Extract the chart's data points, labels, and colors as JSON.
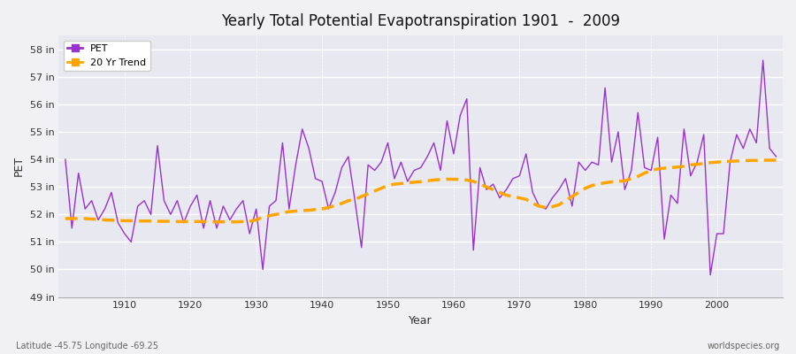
{
  "title": "Yearly Total Potential Evapotranspiration 1901  -  2009",
  "xlabel": "Year",
  "ylabel": "PET",
  "subtitle_left": "Latitude -45.75 Longitude -69.25",
  "subtitle_right": "worldspecies.org",
  "pet_color": "#9932CC",
  "trend_color": "#FFA500",
  "bg_color": "#f0f0f5",
  "plot_bg_color": "#e8e8f0",
  "ylim_min": 49,
  "ylim_max": 58.5,
  "years": [
    1901,
    1902,
    1903,
    1904,
    1905,
    1906,
    1907,
    1908,
    1909,
    1910,
    1911,
    1912,
    1913,
    1914,
    1915,
    1916,
    1917,
    1918,
    1919,
    1920,
    1921,
    1922,
    1923,
    1924,
    1925,
    1926,
    1927,
    1928,
    1929,
    1930,
    1931,
    1932,
    1933,
    1934,
    1935,
    1936,
    1937,
    1938,
    1939,
    1940,
    1941,
    1942,
    1943,
    1944,
    1945,
    1946,
    1947,
    1948,
    1949,
    1950,
    1951,
    1952,
    1953,
    1954,
    1955,
    1956,
    1957,
    1958,
    1959,
    1960,
    1961,
    1962,
    1963,
    1964,
    1965,
    1966,
    1967,
    1968,
    1969,
    1970,
    1971,
    1972,
    1973,
    1974,
    1975,
    1976,
    1977,
    1978,
    1979,
    1980,
    1981,
    1982,
    1983,
    1984,
    1985,
    1986,
    1987,
    1988,
    1989,
    1990,
    1991,
    1992,
    1993,
    1994,
    1995,
    1996,
    1997,
    1998,
    1999,
    2000,
    2001,
    2002,
    2003,
    2004,
    2005,
    2006,
    2007,
    2008,
    2009
  ],
  "pet_values": [
    54.0,
    51.5,
    53.5,
    52.2,
    52.5,
    51.8,
    52.2,
    52.8,
    51.7,
    51.3,
    51.0,
    52.3,
    52.5,
    52.0,
    54.5,
    52.5,
    52.0,
    52.5,
    51.7,
    52.3,
    52.7,
    51.5,
    52.5,
    51.5,
    52.3,
    51.8,
    52.2,
    52.5,
    51.3,
    52.2,
    50.0,
    52.3,
    52.5,
    54.6,
    52.2,
    53.8,
    55.1,
    54.4,
    53.3,
    53.2,
    52.2,
    52.8,
    53.7,
    54.1,
    52.5,
    50.8,
    53.8,
    53.6,
    53.9,
    54.6,
    53.3,
    53.9,
    53.2,
    53.6,
    53.7,
    54.1,
    54.6,
    53.6,
    55.4,
    54.2,
    55.6,
    56.2,
    50.7,
    53.7,
    52.9,
    53.1,
    52.6,
    52.9,
    53.3,
    53.4,
    54.2,
    52.8,
    52.3,
    52.2,
    52.6,
    52.9,
    53.3,
    52.3,
    53.9,
    53.6,
    53.9,
    53.8,
    56.6,
    53.9,
    55.0,
    52.9,
    53.6,
    55.7,
    53.7,
    53.6,
    54.8,
    51.1,
    52.7,
    52.4,
    55.1,
    53.4,
    53.9,
    54.9,
    49.8,
    51.3,
    51.3,
    53.9,
    54.9,
    54.4,
    55.1,
    54.6,
    57.6,
    54.4,
    54.1
  ],
  "trend_values": [
    51.85,
    51.85,
    51.85,
    51.85,
    51.83,
    51.82,
    51.8,
    51.79,
    51.78,
    51.77,
    51.77,
    51.76,
    51.76,
    51.76,
    51.75,
    51.75,
    51.75,
    51.74,
    51.74,
    51.74,
    51.74,
    51.74,
    51.73,
    51.73,
    51.73,
    51.73,
    51.73,
    51.74,
    51.75,
    51.8,
    51.9,
    51.95,
    52.0,
    52.05,
    52.1,
    52.12,
    52.14,
    52.15,
    52.18,
    52.2,
    52.25,
    52.32,
    52.4,
    52.5,
    52.55,
    52.65,
    52.75,
    52.85,
    52.95,
    53.05,
    53.1,
    53.12,
    53.15,
    53.17,
    53.19,
    53.22,
    53.25,
    53.27,
    53.28,
    53.28,
    53.27,
    53.25,
    53.2,
    53.1,
    53.0,
    52.9,
    52.8,
    52.7,
    52.65,
    52.6,
    52.55,
    52.4,
    52.3,
    52.25,
    52.28,
    52.35,
    52.5,
    52.65,
    52.8,
    52.95,
    53.05,
    53.1,
    53.15,
    53.18,
    53.2,
    53.22,
    53.3,
    53.38,
    53.5,
    53.6,
    53.65,
    53.68,
    53.7,
    53.72,
    53.75,
    53.8,
    53.82,
    53.85,
    53.88,
    53.9,
    53.92,
    53.93,
    53.94,
    53.95,
    53.96,
    53.96,
    53.97,
    53.97,
    53.97
  ]
}
